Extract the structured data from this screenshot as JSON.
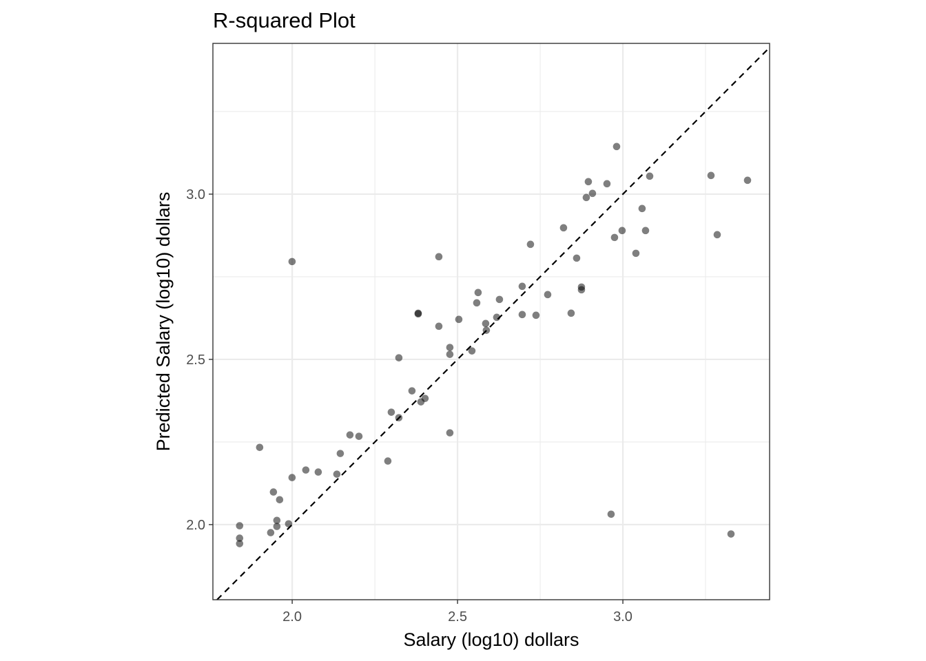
{
  "chart_data": {
    "type": "scatter",
    "title": "R-squared Plot",
    "xlabel": "Salary (log10) dollars",
    "ylabel": "Predicted Salary (log10) dollars",
    "xlim": [
      1.7602,
      3.4437
    ],
    "ylim": [
      1.7727,
      3.4562
    ],
    "x_ticks": [
      2.0,
      2.5,
      3.0
    ],
    "y_ticks": [
      2.0,
      2.5,
      3.0
    ],
    "x_tick_labels": [
      "2.0",
      "2.5",
      "3.0"
    ],
    "y_tick_labels": [
      "2.0",
      "2.5",
      "3.0"
    ],
    "grid": true,
    "reference_line": {
      "slope": 1,
      "intercept": 0,
      "style": "dashed"
    },
    "colors": {
      "point": "#000000",
      "point_opacity": 0.5,
      "panel_border": "#333333",
      "grid": "#ebebeb",
      "reference_line": "#000000"
    },
    "points": [
      [
        1.841,
        1.9965
      ],
      [
        1.841,
        1.959
      ],
      [
        1.841,
        1.9424
      ],
      [
        1.9016,
        2.2336
      ],
      [
        1.935,
        1.9757
      ],
      [
        1.9433,
        2.0986
      ],
      [
        1.9537,
        2.0128
      ],
      [
        1.9537,
        1.9944
      ],
      [
        1.962,
        2.0753
      ],
      [
        1.9892,
        2.0023
      ],
      [
        1.9996,
        2.796
      ],
      [
        1.9996,
        2.1423
      ],
      [
        2.0412,
        2.1652
      ],
      [
        2.0788,
        2.159
      ],
      [
        2.1351,
        2.1527
      ],
      [
        2.1455,
        2.2152
      ],
      [
        2.1747,
        2.2714
      ],
      [
        2.2018,
        2.2672
      ],
      [
        2.2893,
        2.1923
      ],
      [
        2.2997,
        2.3401
      ],
      [
        2.3226,
        2.5047
      ],
      [
        2.3226,
        2.3235
      ],
      [
        2.3622,
        2.4047
      ],
      [
        2.381,
        2.6397
      ],
      [
        2.381,
        2.6377
      ],
      [
        2.3893,
        2.3714
      ],
      [
        2.4018,
        2.3818
      ],
      [
        2.4435,
        2.8106
      ],
      [
        2.4435,
        2.6002
      ],
      [
        2.4768,
        2.536
      ],
      [
        2.4768,
        2.5151
      ],
      [
        2.4768,
        2.2777
      ],
      [
        2.5039,
        2.621
      ],
      [
        2.5435,
        2.5256
      ],
      [
        2.5581,
        2.671
      ],
      [
        2.5622,
        2.7023
      ],
      [
        2.5851,
        2.6085
      ],
      [
        2.5872,
        2.5881
      ],
      [
        2.6185,
        2.6273
      ],
      [
        2.6268,
        2.6814
      ],
      [
        2.6956,
        2.721
      ],
      [
        2.6956,
        2.6356
      ],
      [
        2.7206,
        2.8481
      ],
      [
        2.7373,
        2.6335
      ],
      [
        2.7727,
        2.696
      ],
      [
        2.8206,
        2.8981
      ],
      [
        2.8435,
        2.6398
      ],
      [
        2.8602,
        2.8064
      ],
      [
        2.8748,
        2.7189
      ],
      [
        2.8748,
        2.7106
      ],
      [
        2.8894,
        2.9898
      ],
      [
        2.8956,
        3.0377
      ],
      [
        2.9081,
        3.0023
      ],
      [
        2.9519,
        3.0315
      ],
      [
        2.9644,
        2.0315
      ],
      [
        2.9748,
        2.8689
      ],
      [
        2.9811,
        3.144
      ],
      [
        2.9977,
        2.8898
      ],
      [
        3.0394,
        2.821
      ],
      [
        3.0581,
        2.9565
      ],
      [
        3.0686,
        2.8898
      ],
      [
        3.0811,
        3.0544
      ],
      [
        3.2665,
        3.0565
      ],
      [
        3.2853,
        2.8773
      ],
      [
        3.327,
        1.9716
      ],
      [
        3.377,
        3.0419
      ]
    ]
  }
}
